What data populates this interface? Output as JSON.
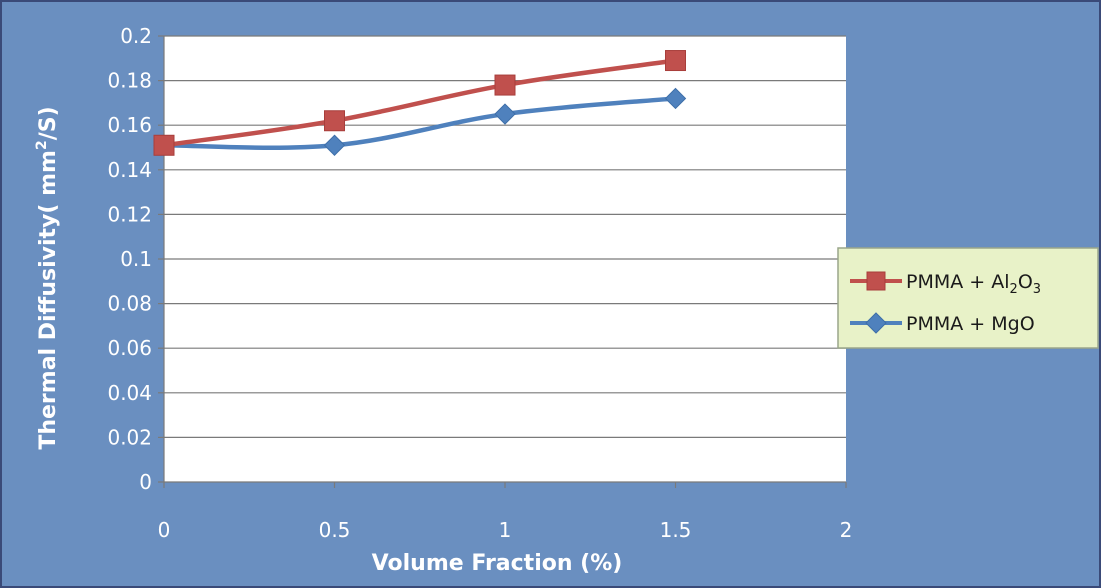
{
  "colors": {
    "frame_border": "#3a4a78",
    "chart_background": "#6a8fc0",
    "plot_background": "#ffffff",
    "gridline": "#7a7a7a",
    "legend_background": "#e8f2c8",
    "legend_border": "#9aa68a",
    "tick_text": "#ffffff"
  },
  "chart_data": {
    "type": "line",
    "xlabel": "Volume Fraction   (%)",
    "ylabel": {
      "prefix": "Thermal Diffusivity",
      "paren_open": "( ",
      "unit_base": "mm",
      "unit_sup": "2",
      "unit_tail": "/S)"
    },
    "xlim": [
      0,
      2
    ],
    "ylim": [
      0,
      0.2
    ],
    "x_ticks": [
      "0",
      "0.5",
      "1",
      "1.5",
      "2"
    ],
    "x_tick_values": [
      0,
      0.5,
      1,
      1.5,
      2
    ],
    "y_ticks": [
      "0",
      "0.02",
      "0.04",
      "0.06",
      "0.08",
      "0.1",
      "0.12",
      "0.14",
      "0.16",
      "0.18",
      "0.2"
    ],
    "y_tick_values": [
      0,
      0.02,
      0.04,
      0.06,
      0.08,
      0.1,
      0.12,
      0.14,
      0.16,
      0.18,
      0.2
    ],
    "grid": "horizontal",
    "legend_position": "right",
    "series": [
      {
        "name": "PMMA + Al2O3",
        "label_parts": [
          "PMMA + Al",
          "2",
          "O",
          "3"
        ],
        "color": "#c0504d",
        "marker": "square",
        "x": [
          0,
          0.5,
          1,
          1.5
        ],
        "y": [
          0.151,
          0.162,
          0.178,
          0.189
        ]
      },
      {
        "name": "PMMA + MgO",
        "label_parts": [
          "PMMA + MgO"
        ],
        "color": "#4f81bd",
        "marker": "diamond",
        "x": [
          0,
          0.5,
          1,
          1.5
        ],
        "y": [
          0.151,
          0.151,
          0.165,
          0.172
        ]
      }
    ]
  }
}
